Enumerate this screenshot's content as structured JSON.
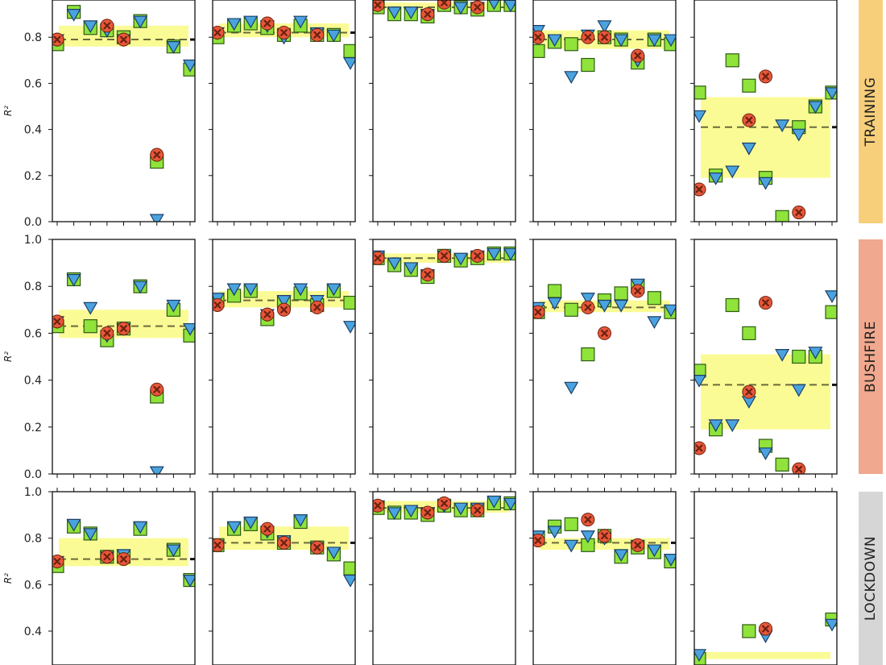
{
  "figure": {
    "ylabel": "R²",
    "colors": {
      "green_square": "#8fe33a",
      "blue_triangle": "#4aa3df",
      "red_x": "#e8573a",
      "band": "#fbfb8a",
      "median_line": "#6b6b3a"
    }
  },
  "chart_data": {
    "type": "scatter",
    "series_markers": [
      "green-square",
      "blue-triangle",
      "red-x"
    ],
    "rows": [
      {
        "label": "TRAINING",
        "color": "#f7cf7a",
        "ylim": [
          0,
          0.97
        ],
        "yticks": [
          0.0,
          0.2,
          0.4,
          0.6,
          0.8
        ],
        "panels": [
          {
            "median": 0.79,
            "band": [
              0.76,
              0.85
            ],
            "green": [
              0.77,
              0.91,
              0.84,
              0.83,
              0.8,
              0.87,
              0.26,
              0.76,
              0.66
            ],
            "blue": [
              0.79,
              0.9,
              0.85,
              0.83,
              0.79,
              0.87,
              0.01,
              0.76,
              0.68
            ],
            "red": [
              0.79,
              null,
              null,
              0.85,
              0.79,
              null,
              0.29,
              null,
              null
            ]
          },
          {
            "median": 0.82,
            "band": [
              0.8,
              0.86
            ],
            "green": [
              0.8,
              0.85,
              0.86,
              0.84,
              0.81,
              0.85,
              0.81,
              0.81,
              0.74
            ],
            "blue": [
              0.82,
              0.86,
              0.87,
              0.85,
              0.8,
              0.87,
              0.82,
              0.81,
              0.69
            ],
            "red": [
              0.82,
              null,
              null,
              0.86,
              0.82,
              null,
              0.81,
              null,
              null
            ]
          },
          {
            "median": 0.93,
            "band": [
              0.92,
              0.95
            ],
            "green": [
              0.93,
              0.9,
              0.9,
              0.89,
              0.94,
              0.93,
              0.92,
              0.94,
              0.94
            ],
            "blue": [
              0.94,
              0.91,
              0.91,
              0.9,
              0.95,
              0.93,
              0.93,
              0.95,
              0.94
            ],
            "red": [
              0.94,
              null,
              null,
              0.9,
              0.95,
              null,
              0.93,
              null,
              null
            ]
          },
          {
            "median": 0.79,
            "band": [
              0.75,
              0.83
            ],
            "green": [
              0.74,
              0.78,
              0.77,
              0.68,
              0.8,
              0.79,
              0.69,
              0.79,
              0.77
            ],
            "blue": [
              0.83,
              0.79,
              0.63,
              0.81,
              0.85,
              0.79,
              0.7,
              0.79,
              0.79
            ],
            "red": [
              0.8,
              null,
              null,
              0.8,
              0.8,
              null,
              0.72,
              null,
              null
            ]
          },
          {
            "median": 0.41,
            "band": [
              0.19,
              0.54
            ],
            "green": [
              0.56,
              0.2,
              0.7,
              0.59,
              0.19,
              0.02,
              0.41,
              0.5,
              0.56
            ],
            "blue": [
              0.46,
              0.19,
              0.22,
              0.32,
              0.17,
              0.42,
              0.38,
              0.5,
              0.56
            ],
            "red": [
              0.14,
              null,
              null,
              0.44,
              0.63,
              null,
              0.04,
              null,
              null
            ]
          }
        ]
      },
      {
        "label": "BUSHFIRE",
        "color": "#f0a88e",
        "ylim": [
          0,
          1.0
        ],
        "yticks": [
          0.0,
          0.2,
          0.4,
          0.6,
          0.8,
          1.0
        ],
        "panels": [
          {
            "median": 0.63,
            "band": [
              0.58,
              0.7
            ],
            "green": [
              0.63,
              0.83,
              0.63,
              0.57,
              0.62,
              0.8,
              0.33,
              0.7,
              0.59
            ],
            "blue": [
              0.65,
              0.83,
              0.71,
              0.59,
              0.62,
              0.8,
              0.01,
              0.72,
              0.62
            ],
            "red": [
              0.65,
              null,
              null,
              0.6,
              0.62,
              null,
              0.36,
              null,
              null
            ]
          },
          {
            "median": 0.74,
            "band": [
              0.71,
              0.78
            ],
            "green": [
              0.74,
              0.76,
              0.78,
              0.66,
              0.73,
              0.77,
              0.72,
              0.78,
              0.73
            ],
            "blue": [
              0.75,
              0.79,
              0.79,
              0.68,
              0.74,
              0.79,
              0.74,
              0.79,
              0.63
            ],
            "red": [
              0.72,
              null,
              null,
              0.68,
              0.7,
              null,
              0.71,
              null,
              null
            ]
          },
          {
            "median": 0.92,
            "band": [
              0.9,
              0.94
            ],
            "green": [
              0.92,
              0.89,
              0.87,
              0.84,
              0.93,
              0.91,
              0.92,
              0.94,
              0.94
            ],
            "blue": [
              0.93,
              0.9,
              0.88,
              0.85,
              0.93,
              0.92,
              0.93,
              0.94,
              0.94
            ],
            "red": [
              0.92,
              null,
              null,
              0.85,
              0.93,
              null,
              0.93,
              null,
              null
            ]
          },
          {
            "median": 0.71,
            "band": [
              0.69,
              0.74
            ],
            "green": [
              0.69,
              0.78,
              0.7,
              0.51,
              0.74,
              0.77,
              0.8,
              0.75,
              0.69
            ],
            "blue": [
              0.71,
              0.73,
              0.37,
              0.75,
              0.72,
              0.72,
              0.81,
              0.65,
              0.7
            ],
            "red": [
              0.69,
              null,
              null,
              0.71,
              0.6,
              null,
              0.78,
              null,
              null
            ]
          },
          {
            "median": 0.38,
            "band": [
              0.19,
              0.51
            ],
            "green": [
              0.44,
              0.19,
              0.72,
              0.6,
              0.12,
              0.04,
              0.5,
              0.5,
              0.69
            ],
            "blue": [
              0.4,
              0.21,
              0.21,
              0.31,
              0.09,
              0.51,
              0.36,
              0.52,
              0.76
            ],
            "red": [
              0.11,
              null,
              null,
              0.35,
              0.73,
              null,
              0.02,
              null,
              null
            ]
          }
        ]
      },
      {
        "label": "LOCKDOWN",
        "color": "#d6d6d6",
        "ylim": [
          0.29,
          1.0
        ],
        "yticks": [
          0.4,
          0.6,
          0.8,
          1.0
        ],
        "panels": [
          {
            "median": 0.71,
            "band": [
              0.68,
              0.8
            ],
            "green": [
              0.68,
              0.85,
              0.82,
              0.72,
              0.72,
              0.84,
              null,
              0.75,
              0.62
            ],
            "blue": [
              0.7,
              0.86,
              0.82,
              0.72,
              0.73,
              0.85,
              null,
              0.75,
              0.62
            ],
            "red": [
              0.7,
              null,
              null,
              0.72,
              0.71,
              null,
              null,
              null,
              null
            ]
          },
          {
            "median": 0.78,
            "band": [
              0.75,
              0.85
            ],
            "green": [
              0.77,
              0.84,
              0.86,
              0.82,
              0.78,
              0.87,
              0.76,
              0.73,
              0.67
            ],
            "blue": [
              0.77,
              0.85,
              0.87,
              0.83,
              0.79,
              0.88,
              0.76,
              0.74,
              0.62
            ],
            "red": [
              0.77,
              null,
              null,
              0.84,
              0.78,
              null,
              0.76,
              null,
              null
            ]
          },
          {
            "median": 0.93,
            "band": [
              0.91,
              0.96
            ],
            "green": [
              0.93,
              0.91,
              0.91,
              0.9,
              0.94,
              0.92,
              0.92,
              0.95,
              0.95
            ],
            "blue": [
              0.94,
              0.91,
              0.92,
              0.91,
              0.94,
              0.93,
              0.93,
              0.96,
              0.95
            ],
            "red": [
              0.94,
              null,
              null,
              0.91,
              0.95,
              null,
              0.92,
              null,
              null
            ]
          },
          {
            "median": 0.78,
            "band": [
              0.75,
              0.8
            ],
            "green": [
              0.8,
              0.85,
              0.86,
              0.77,
              0.81,
              0.72,
              0.76,
              0.74,
              0.7
            ],
            "blue": [
              0.81,
              0.83,
              0.77,
              0.81,
              0.8,
              0.73,
              0.77,
              0.75,
              0.71
            ],
            "red": [
              0.79,
              null,
              null,
              0.88,
              0.81,
              null,
              0.77,
              null,
              null
            ]
          },
          {
            "median": null,
            "band": [
              0.28,
              0.31
            ],
            "green": [
              0.28,
              null,
              null,
              0.4,
              null,
              null,
              null,
              null,
              0.45
            ],
            "blue": [
              0.3,
              null,
              null,
              null,
              0.38,
              null,
              null,
              null,
              0.43
            ],
            "red": [
              null,
              null,
              null,
              null,
              0.41,
              null,
              null,
              null,
              null
            ]
          }
        ]
      }
    ]
  }
}
